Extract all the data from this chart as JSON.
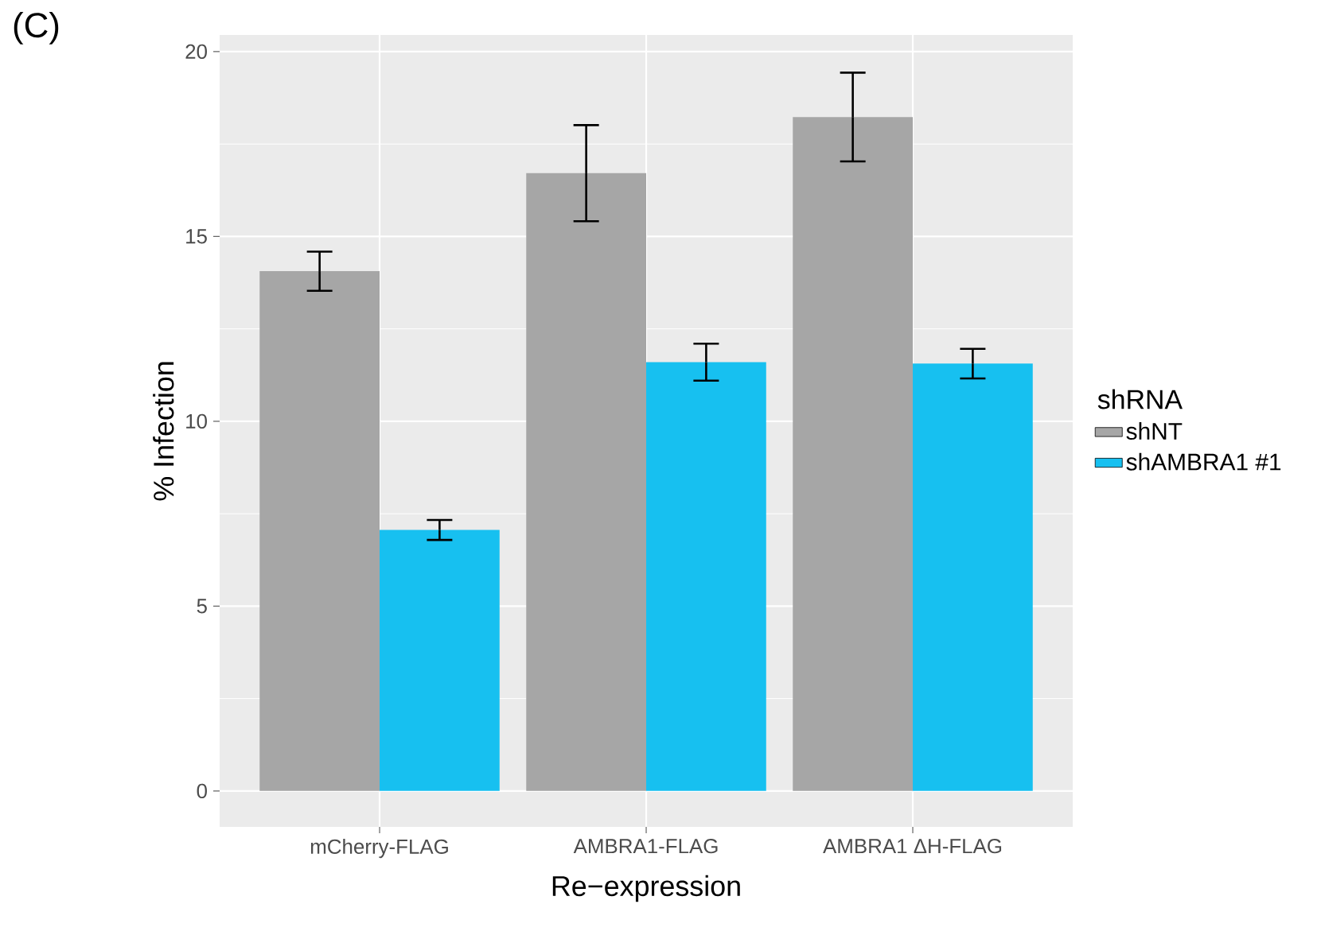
{
  "chart_data": {
    "type": "bar",
    "annotations": [
      "(C)"
    ],
    "xlabel": "Re−expression",
    "ylabel": "% Infection",
    "legend_title": "shRNA",
    "categories": [
      "mCherry-FLAG",
      "AMBRA1-FLAG",
      "AMBRA1 ΔH-FLAG"
    ],
    "series": [
      {
        "name": "shNT",
        "color": "#a6a6a6",
        "values": [
          14.06,
          16.71,
          18.23
        ],
        "errors": [
          0.53,
          1.3,
          1.2
        ]
      },
      {
        "name": "shAMBRA1 #1",
        "color": "#17c0f0",
        "values": [
          7.06,
          11.6,
          11.56
        ],
        "errors": [
          0.27,
          0.5,
          0.4
        ]
      }
    ],
    "ylim": [
      -0.97,
      20.45
    ],
    "yticks": [
      0,
      5,
      10,
      15,
      20
    ],
    "grid": true,
    "legend": "right"
  }
}
